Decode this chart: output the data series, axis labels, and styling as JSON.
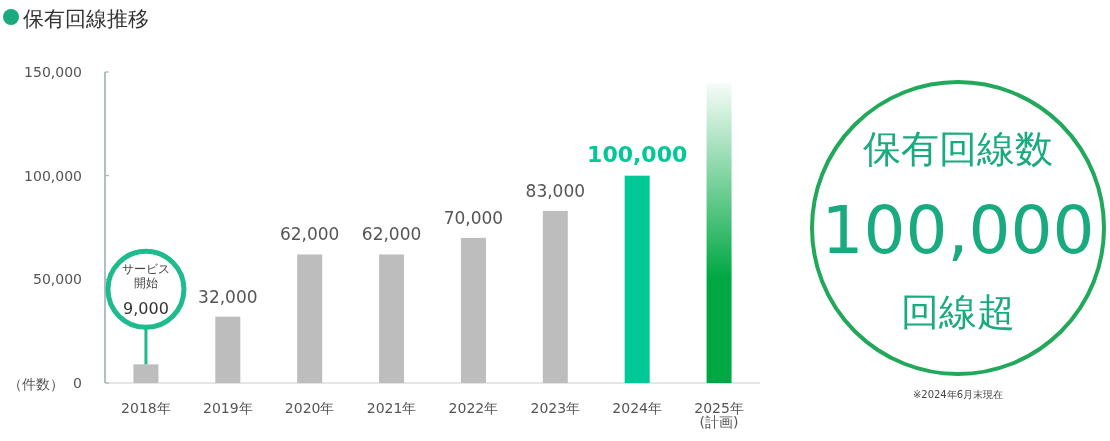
{
  "chart_data": [
    {
      "type": "bar",
      "title": "保有回線推移",
      "ylabel": "（件数）",
      "categories": [
        "2018年",
        "2019年",
        "2020年",
        "2021年",
        "2022年",
        "2023年",
        "2024年",
        "2025年\n(計画)"
      ],
      "values": [
        9000,
        32000,
        62000,
        62000,
        70000,
        83000,
        100000,
        145000
      ],
      "colors": [
        "#bdbdbd",
        "#bdbdbd",
        "#bdbdbd",
        "#bdbdbd",
        "#bdbdbd",
        "#bdbdbd",
        "#00c896",
        "#00a843"
      ],
      "value_labels": [
        "9,000",
        "32,000",
        "62,000",
        "62,000",
        "70,000",
        "83,000",
        "100,000",
        null
      ],
      "ylim": [
        0,
        150000
      ],
      "yticks": [
        {
          "value": 0,
          "label": "0"
        },
        {
          "value": 50000,
          "label": "50,000"
        },
        {
          "value": 100000,
          "label": "100,000"
        },
        {
          "value": 150000,
          "label": "150,000"
        }
      ],
      "annotations": [
        "サービス開始"
      ],
      "grid": false
    },
    {
      "type": "other",
      "annotations": [
        "保有回線数",
        "100,000",
        "回線超",
        "※2024年6月末現在"
      ]
    }
  ]
}
